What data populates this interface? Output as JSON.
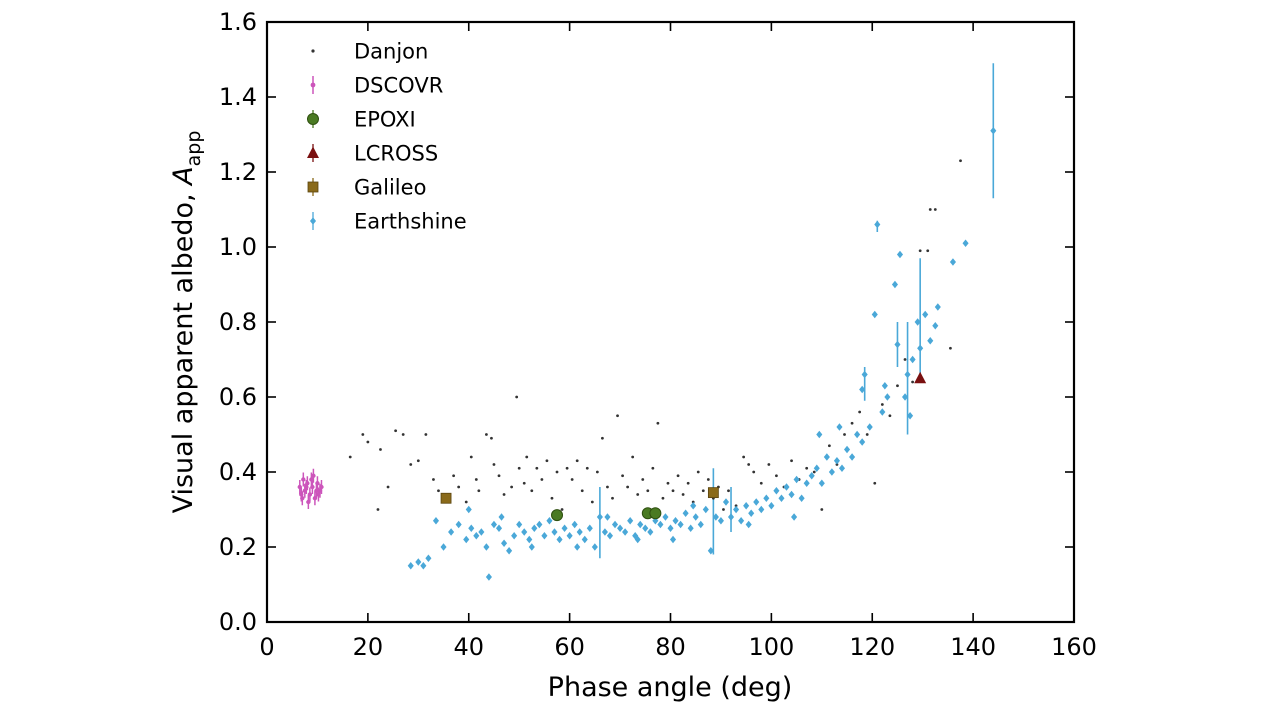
{
  "chart_data": {
    "type": "scatter",
    "xlabel": "Phase angle (deg)",
    "ylabel_main": "Visual apparent albedo, ",
    "ylabel_symbol": "A",
    "ylabel_subscript": "app",
    "xlim": [
      0,
      160
    ],
    "ylim": [
      0.0,
      1.6
    ],
    "xticks": [
      0,
      20,
      40,
      60,
      80,
      100,
      120,
      140,
      160
    ],
    "yticks": [
      0.0,
      0.2,
      0.4,
      0.6,
      0.8,
      1.0,
      1.2,
      1.4,
      1.6
    ],
    "xtick_labels": [
      "0",
      "20",
      "40",
      "60",
      "80",
      "100",
      "120",
      "140",
      "160"
    ],
    "ytick_labels": [
      "0.0",
      "0.2",
      "0.4",
      "0.6",
      "0.8",
      "1.0",
      "1.2",
      "1.4",
      "1.6"
    ],
    "legend_position": "top-left",
    "series": [
      {
        "name": "Danjon",
        "marker": "dot",
        "color": "#333333",
        "points": [
          [
            16.5,
            0.44
          ],
          [
            19,
            0.5
          ],
          [
            20,
            0.48
          ],
          [
            22,
            0.3
          ],
          [
            22.5,
            0.46
          ],
          [
            24,
            0.36
          ],
          [
            25.5,
            0.51
          ],
          [
            27,
            0.5
          ],
          [
            28.5,
            0.42
          ],
          [
            30,
            0.43
          ],
          [
            31.5,
            0.5
          ],
          [
            33,
            0.38
          ],
          [
            34,
            0.35
          ],
          [
            35.5,
            0.34
          ],
          [
            37,
            0.39
          ],
          [
            38,
            0.36
          ],
          [
            39.5,
            0.32
          ],
          [
            40.5,
            0.44
          ],
          [
            41.5,
            0.38
          ],
          [
            42,
            0.35
          ],
          [
            43.5,
            0.5
          ],
          [
            44.5,
            0.49
          ],
          [
            45,
            0.42
          ],
          [
            46,
            0.39
          ],
          [
            47,
            0.34
          ],
          [
            48.5,
            0.36
          ],
          [
            49.5,
            0.6
          ],
          [
            50,
            0.41
          ],
          [
            51,
            0.37
          ],
          [
            51.5,
            0.44
          ],
          [
            52.5,
            0.35
          ],
          [
            53.5,
            0.41
          ],
          [
            54.5,
            0.38
          ],
          [
            55.5,
            0.43
          ],
          [
            56.5,
            0.33
          ],
          [
            57.5,
            0.4
          ],
          [
            58.5,
            0.3
          ],
          [
            59.5,
            0.41
          ],
          [
            60.5,
            0.38
          ],
          [
            61.5,
            0.43
          ],
          [
            62.5,
            0.35
          ],
          [
            63.5,
            0.41
          ],
          [
            64.5,
            0.32
          ],
          [
            65.5,
            0.4
          ],
          [
            66.5,
            0.49
          ],
          [
            67.5,
            0.36
          ],
          [
            68.5,
            0.33
          ],
          [
            69.5,
            0.55
          ],
          [
            70.5,
            0.39
          ],
          [
            71.5,
            0.36
          ],
          [
            72.5,
            0.44
          ],
          [
            73.5,
            0.34
          ],
          [
            74.5,
            0.38
          ],
          [
            75.5,
            0.35
          ],
          [
            76.5,
            0.41
          ],
          [
            77.5,
            0.53
          ],
          [
            78.5,
            0.33
          ],
          [
            79.5,
            0.37
          ],
          [
            80.5,
            0.35
          ],
          [
            81.5,
            0.39
          ],
          [
            82.5,
            0.34
          ],
          [
            83.5,
            0.37
          ],
          [
            84.5,
            0.32
          ],
          [
            85.5,
            0.4
          ],
          [
            86.5,
            0.35
          ],
          [
            87.5,
            0.38
          ],
          [
            88.5,
            0.33
          ],
          [
            89.5,
            0.36
          ],
          [
            90.5,
            0.3
          ],
          [
            91.5,
            0.35
          ],
          [
            93,
            0.31
          ],
          [
            94.5,
            0.44
          ],
          [
            95.5,
            0.42
          ],
          [
            96.5,
            0.4
          ],
          [
            98,
            0.37
          ],
          [
            99.5,
            0.42
          ],
          [
            101,
            0.39
          ],
          [
            102.5,
            0.36
          ],
          [
            104,
            0.43
          ],
          [
            105.5,
            0.38
          ],
          [
            107,
            0.41
          ],
          [
            108.5,
            0.4
          ],
          [
            110,
            0.3
          ],
          [
            111.5,
            0.47
          ],
          [
            113,
            0.42
          ],
          [
            114.5,
            0.5
          ],
          [
            116,
            0.53
          ],
          [
            117.5,
            0.56
          ],
          [
            119,
            0.5
          ],
          [
            120.5,
            0.37
          ],
          [
            122,
            0.58
          ],
          [
            123.5,
            0.55
          ],
          [
            125,
            0.63
          ],
          [
            126.5,
            0.7
          ],
          [
            128,
            0.64
          ],
          [
            129.5,
            0.99
          ],
          [
            131,
            0.99
          ],
          [
            131.5,
            1.1
          ],
          [
            132.5,
            1.1
          ],
          [
            135.5,
            0.73
          ],
          [
            137.5,
            1.23
          ]
        ]
      },
      {
        "name": "DSCOVR",
        "marker": "small-errorbar",
        "color": "#cc55bb",
        "points": [
          [
            6.5,
            0.36
          ],
          [
            7,
            0.33
          ],
          [
            7.5,
            0.35
          ],
          [
            8,
            0.37
          ],
          [
            8.5,
            0.34
          ],
          [
            9,
            0.36
          ],
          [
            9.5,
            0.33
          ],
          [
            10,
            0.37
          ],
          [
            10.5,
            0.35
          ],
          [
            7.2,
            0.38
          ],
          [
            8.2,
            0.32
          ],
          [
            9.2,
            0.39
          ],
          [
            10.2,
            0.34
          ],
          [
            6.8,
            0.34
          ],
          [
            7.8,
            0.36
          ],
          [
            8.8,
            0.38
          ],
          [
            9.8,
            0.35
          ],
          [
            10.8,
            0.36
          ]
        ]
      },
      {
        "name": "EPOXI",
        "marker": "circle",
        "color": "#4a7a22",
        "points": [
          [
            57.5,
            0.285
          ],
          [
            75.5,
            0.29
          ],
          [
            77,
            0.29
          ]
        ]
      },
      {
        "name": "LCROSS",
        "marker": "triangle",
        "color": "#7a1010",
        "points": [
          [
            129.5,
            0.65
          ]
        ]
      },
      {
        "name": "Galileo",
        "marker": "square",
        "color": "#8a6a1a",
        "points": [
          [
            35.5,
            0.33
          ],
          [
            88.5,
            0.345
          ]
        ]
      },
      {
        "name": "Earthshine",
        "marker": "diamond-errorbar",
        "color": "#4aa8d8",
        "points": [
          [
            28.5,
            0.15
          ],
          [
            30,
            0.16
          ],
          [
            31,
            0.15
          ],
          [
            32,
            0.17
          ],
          [
            33.5,
            0.27
          ],
          [
            35,
            0.2
          ],
          [
            36.5,
            0.24
          ],
          [
            38,
            0.26
          ],
          [
            39.5,
            0.22
          ],
          [
            40.5,
            0.25
          ],
          [
            41.5,
            0.23
          ],
          [
            42.5,
            0.24
          ],
          [
            43.5,
            0.2
          ],
          [
            44,
            0.12
          ],
          [
            45,
            0.26
          ],
          [
            46,
            0.25
          ],
          [
            47,
            0.21
          ],
          [
            48,
            0.19
          ],
          [
            49,
            0.23
          ],
          [
            50,
            0.26
          ],
          [
            51,
            0.24
          ],
          [
            52,
            0.22
          ],
          [
            53,
            0.25
          ],
          [
            54,
            0.26
          ],
          [
            55,
            0.23
          ],
          [
            56,
            0.27
          ],
          [
            57,
            0.24
          ],
          [
            58,
            0.22
          ],
          [
            59,
            0.25
          ],
          [
            60,
            0.23
          ],
          [
            61,
            0.26
          ],
          [
            62,
            0.24
          ],
          [
            63,
            0.22
          ],
          [
            64,
            0.25
          ],
          [
            65,
            0.2
          ],
          [
            66,
            0.28
          ],
          [
            67,
            0.24
          ],
          [
            68,
            0.23
          ],
          [
            69,
            0.26
          ],
          [
            70,
            0.25
          ],
          [
            71,
            0.24
          ],
          [
            72,
            0.27
          ],
          [
            73,
            0.23
          ],
          [
            74,
            0.26
          ],
          [
            75,
            0.25
          ],
          [
            76,
            0.24
          ],
          [
            77,
            0.27
          ],
          [
            78,
            0.26
          ],
          [
            79,
            0.28
          ],
          [
            80,
            0.25
          ],
          [
            81,
            0.27
          ],
          [
            82,
            0.26
          ],
          [
            83,
            0.29
          ],
          [
            84,
            0.25
          ],
          [
            85,
            0.28
          ],
          [
            86,
            0.26
          ],
          [
            87,
            0.3
          ],
          [
            88,
            0.19
          ],
          [
            89,
            0.28
          ],
          [
            90,
            0.27
          ],
          [
            91,
            0.32
          ],
          [
            92,
            0.28
          ],
          [
            93,
            0.3
          ],
          [
            94,
            0.27
          ],
          [
            95,
            0.31
          ],
          [
            96,
            0.29
          ],
          [
            97,
            0.32
          ],
          [
            98,
            0.3
          ],
          [
            99,
            0.33
          ],
          [
            100,
            0.31
          ],
          [
            101,
            0.35
          ],
          [
            102,
            0.33
          ],
          [
            103,
            0.36
          ],
          [
            104,
            0.34
          ],
          [
            105,
            0.38
          ],
          [
            106,
            0.33
          ],
          [
            107,
            0.37
          ],
          [
            108,
            0.39
          ],
          [
            109,
            0.41
          ],
          [
            110,
            0.37
          ],
          [
            111,
            0.44
          ],
          [
            112,
            0.4
          ],
          [
            113,
            0.43
          ],
          [
            114,
            0.41
          ],
          [
            115,
            0.46
          ],
          [
            116,
            0.44
          ],
          [
            117,
            0.5
          ],
          [
            118,
            0.48
          ],
          [
            118.5,
            0.66
          ],
          [
            119.5,
            0.52
          ],
          [
            120.5,
            0.82
          ],
          [
            121,
            1.06
          ],
          [
            122,
            0.56
          ],
          [
            123,
            0.6
          ],
          [
            124.5,
            0.9
          ],
          [
            125,
            0.74
          ],
          [
            125.5,
            0.98
          ],
          [
            126.5,
            0.6
          ],
          [
            127,
            0.66
          ],
          [
            128,
            0.7
          ],
          [
            129,
            0.8
          ],
          [
            129.5,
            0.73
          ],
          [
            130.5,
            0.82
          ],
          [
            131.5,
            0.75
          ],
          [
            132.5,
            0.79
          ],
          [
            133,
            0.84
          ],
          [
            136,
            0.96
          ],
          [
            138.5,
            1.01
          ],
          [
            144,
            1.31
          ],
          [
            40,
            0.3
          ],
          [
            46.5,
            0.28
          ],
          [
            52.5,
            0.2
          ],
          [
            61.5,
            0.2
          ],
          [
            67.5,
            0.28
          ],
          [
            73.5,
            0.22
          ],
          [
            80.5,
            0.22
          ],
          [
            84.5,
            0.31
          ],
          [
            95.5,
            0.26
          ],
          [
            104.5,
            0.28
          ],
          [
            109.5,
            0.5
          ],
          [
            113.5,
            0.52
          ],
          [
            118,
            0.62
          ],
          [
            122.5,
            0.63
          ],
          [
            127.5,
            0.55
          ]
        ]
      }
    ]
  }
}
